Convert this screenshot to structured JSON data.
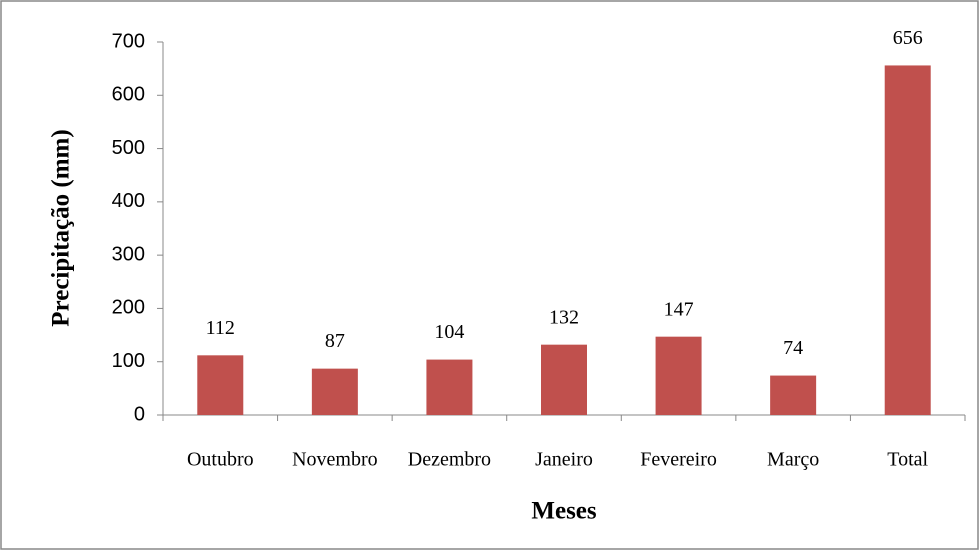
{
  "chart_data": {
    "type": "bar",
    "categories": [
      "Outubro",
      "Novembro",
      "Dezembro",
      "Janeiro",
      "Fevereiro",
      "Março",
      "Total"
    ],
    "values": [
      112,
      87,
      104,
      132,
      147,
      74,
      656
    ],
    "color": "#c0504d",
    "xlabel": "Meses",
    "ylabel": "Precipitação (mm)",
    "ylim": [
      0,
      700
    ],
    "yticks": [
      0,
      100,
      200,
      300,
      400,
      500,
      600,
      700
    ],
    "grid": false
  }
}
